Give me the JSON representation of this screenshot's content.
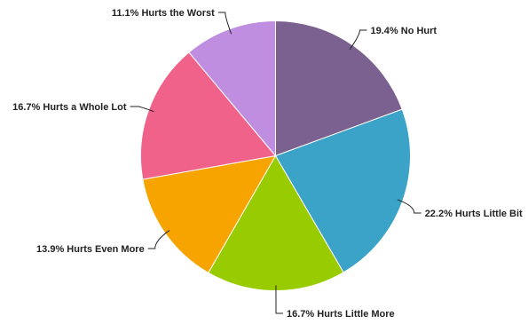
{
  "chart_data": {
    "type": "pie",
    "title": "",
    "slices": [
      {
        "label": "No Hurt",
        "value": 19.4,
        "color": "#7b6190"
      },
      {
        "label": "Hurts Little Bit",
        "value": 22.2,
        "color": "#3ba3c7"
      },
      {
        "label": "Hurts Little More",
        "value": 16.7,
        "color": "#99cc00"
      },
      {
        "label": "Hurts Even More",
        "value": 13.9,
        "color": "#f7a400"
      },
      {
        "label": "Hurts a Whole Lot",
        "value": 16.7,
        "color": "#f06289"
      },
      {
        "label": "Hurts the Worst",
        "value": 11.1,
        "color": "#c08ee0"
      }
    ],
    "start_angle": "12 o'clock",
    "direction": "clockwise",
    "label_format": "percent + label",
    "legend": "none"
  }
}
